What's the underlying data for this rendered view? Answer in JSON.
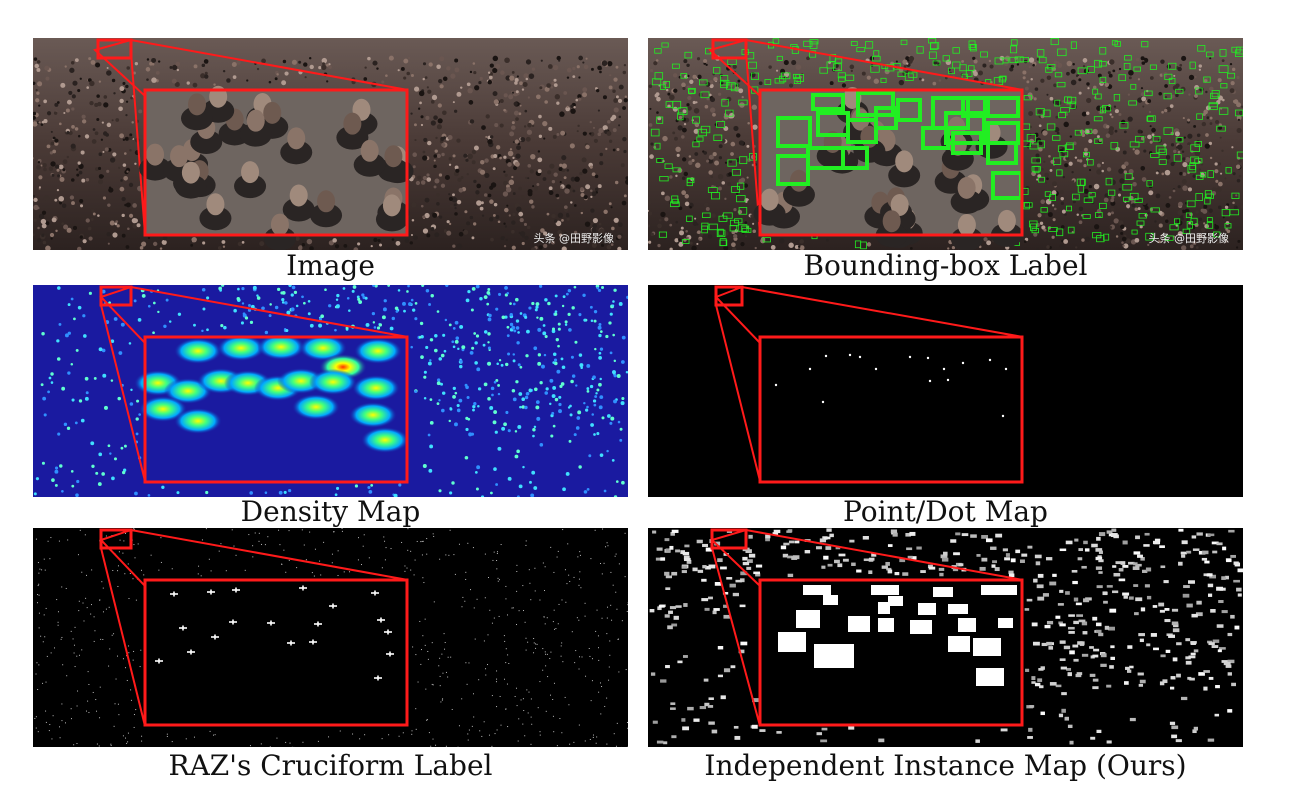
{
  "figure": {
    "panels": [
      {
        "id": "image",
        "caption": "Image",
        "watermark": "头条 @田野影像"
      },
      {
        "id": "bbox",
        "caption": "Bounding-box Label",
        "watermark": "头条 @田野影像"
      },
      {
        "id": "density",
        "caption": "Density Map"
      },
      {
        "id": "point",
        "caption": "Point/Dot Map"
      },
      {
        "id": "cruciform",
        "caption": "RAZ's Cruciform Label"
      },
      {
        "id": "instance",
        "caption": "Independent Instance Map (Ours)"
      }
    ],
    "colors": {
      "highlight_red": "#ff1a1a",
      "bbox_green": "#22ee22",
      "density_bg": "#1a1aa0"
    }
  }
}
